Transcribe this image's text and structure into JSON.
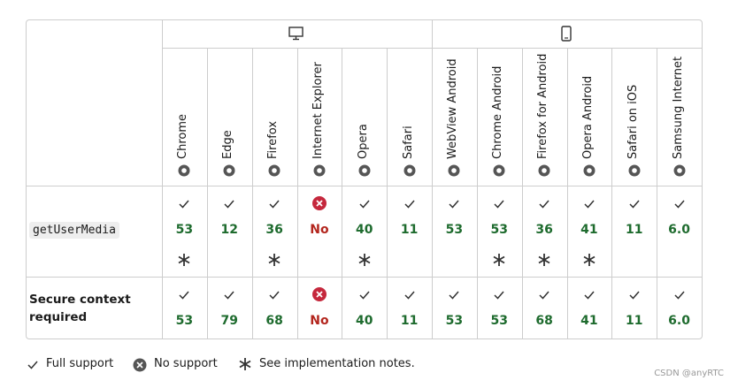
{
  "browsers": [
    "Chrome",
    "Edge",
    "Firefox",
    "Internet Explorer",
    "Opera",
    "Safari",
    "WebView Android",
    "Chrome Android",
    "Firefox for Android",
    "Opera Android",
    "Safari on iOS",
    "Samsung Internet"
  ],
  "rows": [
    {
      "feature": "getUserMedia",
      "code": true,
      "cells": [
        {
          "version": "53",
          "support": "full",
          "notes": true
        },
        {
          "version": "12",
          "support": "full",
          "notes": false
        },
        {
          "version": "36",
          "support": "full",
          "notes": true
        },
        {
          "version": "No",
          "support": "none",
          "notes": false
        },
        {
          "version": "40",
          "support": "full",
          "notes": true
        },
        {
          "version": "11",
          "support": "full",
          "notes": false
        },
        {
          "version": "53",
          "support": "full",
          "notes": false
        },
        {
          "version": "53",
          "support": "full",
          "notes": true
        },
        {
          "version": "36",
          "support": "full",
          "notes": true
        },
        {
          "version": "41",
          "support": "full",
          "notes": true
        },
        {
          "version": "11",
          "support": "full",
          "notes": false
        },
        {
          "version": "6.0",
          "support": "full",
          "notes": false
        }
      ]
    },
    {
      "feature": "Secure context required",
      "code": false,
      "cells": [
        {
          "version": "53",
          "support": "full",
          "notes": false
        },
        {
          "version": "79",
          "support": "full",
          "notes": false
        },
        {
          "version": "68",
          "support": "full",
          "notes": false
        },
        {
          "version": "No",
          "support": "none",
          "notes": false
        },
        {
          "version": "40",
          "support": "full",
          "notes": false
        },
        {
          "version": "11",
          "support": "full",
          "notes": false
        },
        {
          "version": "53",
          "support": "full",
          "notes": false
        },
        {
          "version": "53",
          "support": "full",
          "notes": false
        },
        {
          "version": "68",
          "support": "full",
          "notes": false
        },
        {
          "version": "41",
          "support": "full",
          "notes": false
        },
        {
          "version": "11",
          "support": "full",
          "notes": false
        },
        {
          "version": "6.0",
          "support": "full",
          "notes": false
        }
      ]
    }
  ],
  "legend": {
    "full": "Full support",
    "none": "No support",
    "notes": "See implementation notes."
  },
  "watermark": "CSDN @anyRTC"
}
